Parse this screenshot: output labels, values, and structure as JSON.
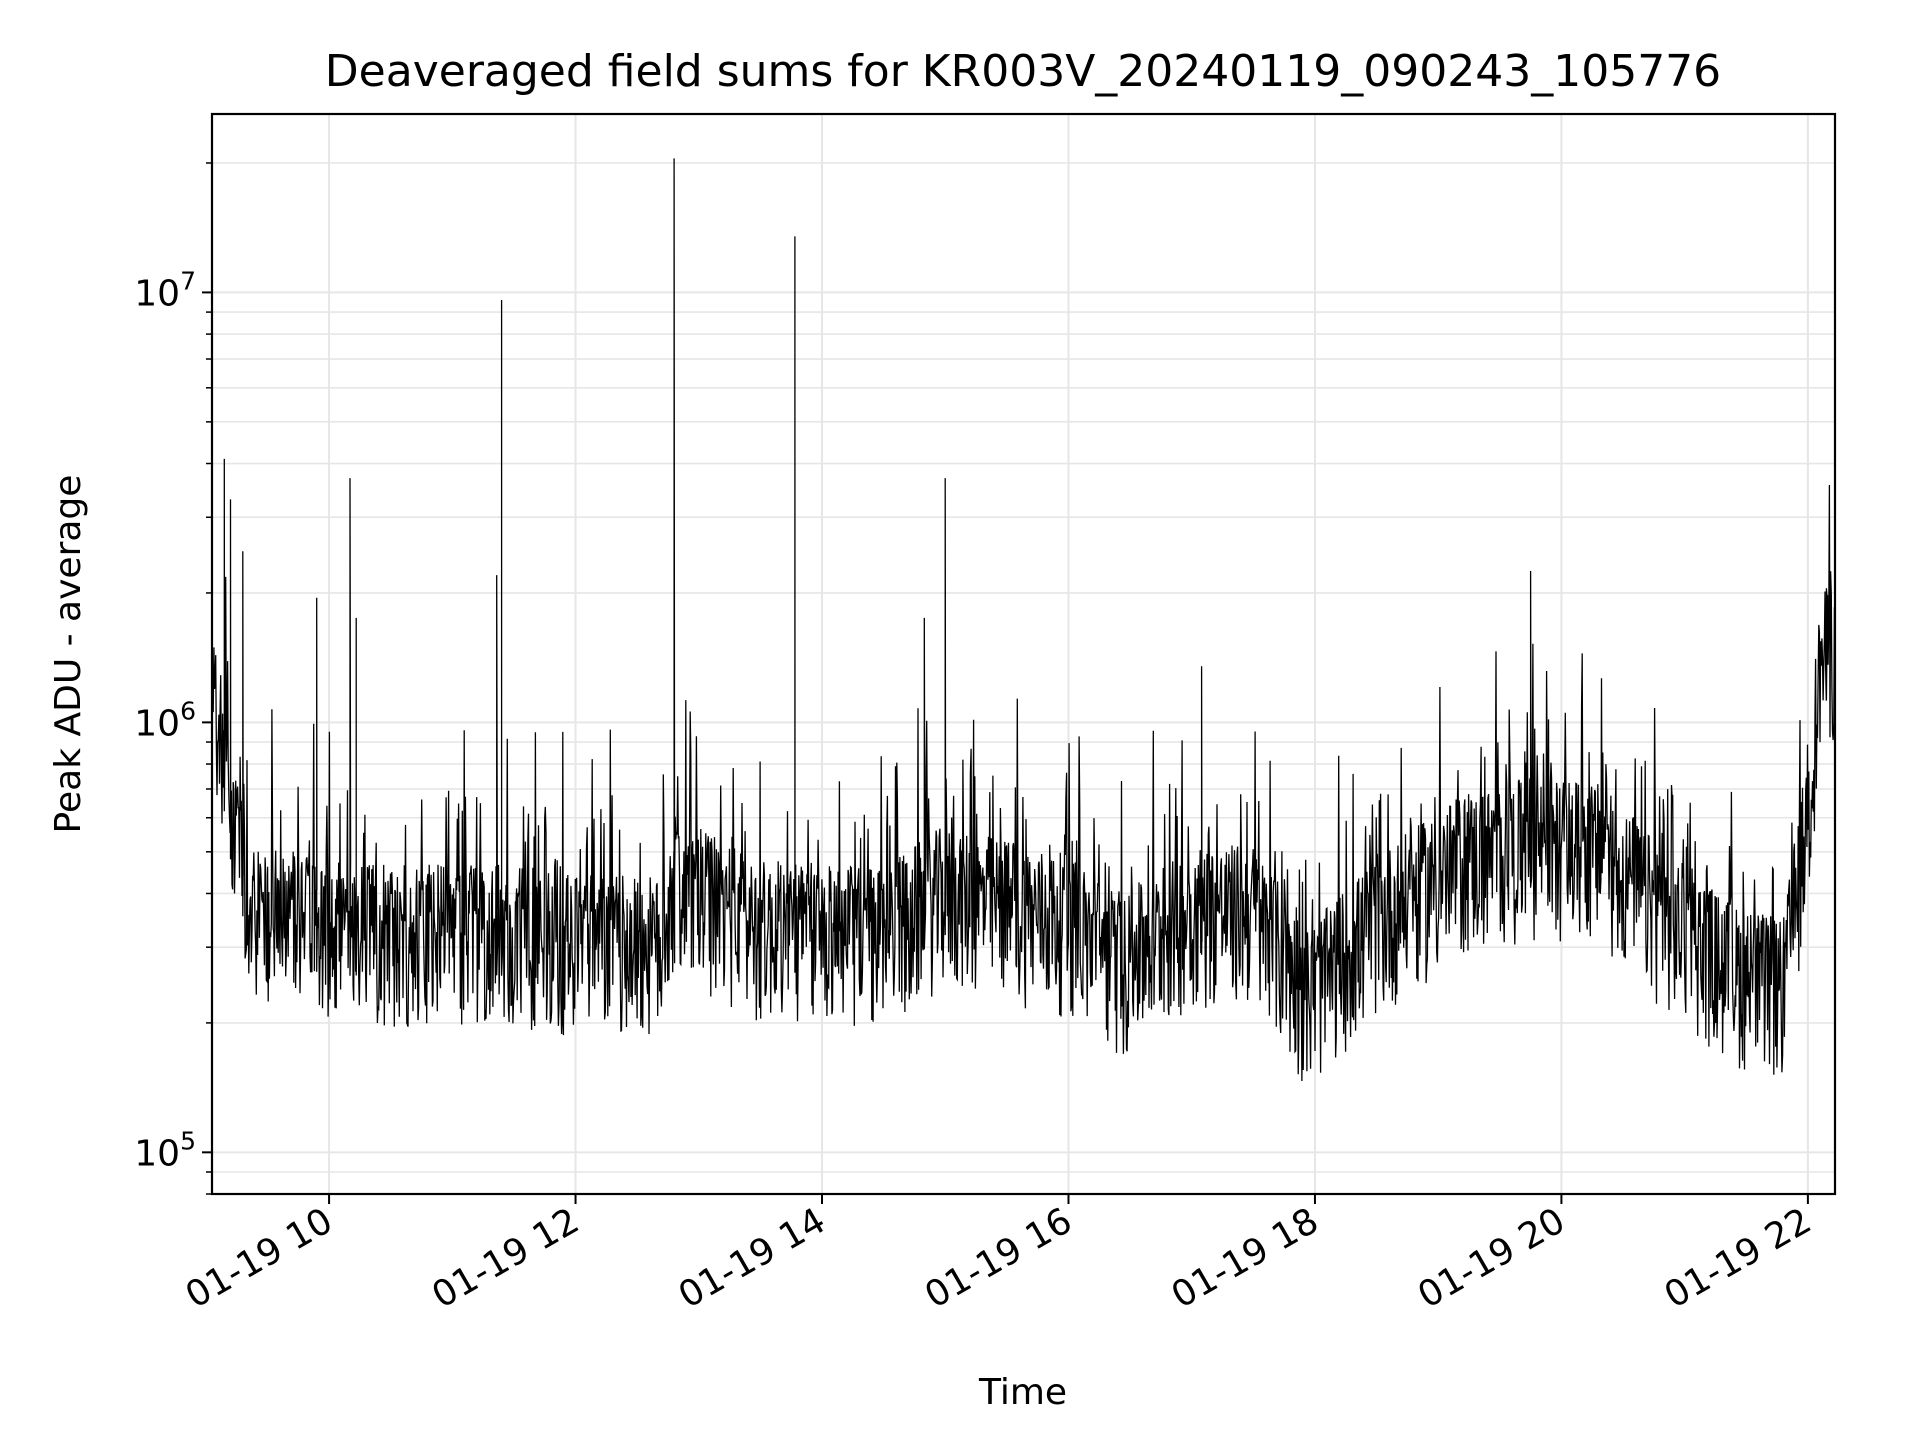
{
  "chart_data": {
    "type": "line",
    "title": "Deaveraged field sums for KR003V_20240119_090243_105776",
    "xlabel": "Time",
    "ylabel": "Peak ADU - average",
    "x_ticks": [
      "01-19 10",
      "01-19 12",
      "01-19 14",
      "01-19 16",
      "01-19 18",
      "01-19 20",
      "01-19 22"
    ],
    "x_tick_hours": [
      10,
      12,
      14,
      16,
      18,
      20,
      22
    ],
    "xlim_hours": [
      9.05,
      22.22
    ],
    "y_ticks": [
      {
        "base": "10",
        "exp": "5",
        "value": 100000
      },
      {
        "base": "10",
        "exp": "6",
        "value": 1000000
      },
      {
        "base": "10",
        "exp": "7",
        "value": 10000000
      }
    ],
    "y_scale": "log",
    "ylim": [
      80000,
      26000000
    ],
    "grid": true,
    "line_color": "#000000",
    "baseline_profile": [
      {
        "x": 9.05,
        "y": 1300000
      },
      {
        "x": 9.2,
        "y": 600000
      },
      {
        "x": 9.35,
        "y": 380000
      },
      {
        "x": 10.0,
        "y": 320000
      },
      {
        "x": 11.0,
        "y": 330000
      },
      {
        "x": 12.0,
        "y": 310000
      },
      {
        "x": 12.7,
        "y": 300000
      },
      {
        "x": 12.8,
        "y": 420000
      },
      {
        "x": 13.5,
        "y": 330000
      },
      {
        "x": 14.5,
        "y": 320000
      },
      {
        "x": 15.0,
        "y": 400000
      },
      {
        "x": 16.0,
        "y": 340000
      },
      {
        "x": 16.45,
        "y": 270000
      },
      {
        "x": 17.0,
        "y": 360000
      },
      {
        "x": 17.5,
        "y": 360000
      },
      {
        "x": 17.95,
        "y": 230000
      },
      {
        "x": 18.5,
        "y": 340000
      },
      {
        "x": 19.2,
        "y": 470000
      },
      {
        "x": 19.8,
        "y": 520000
      },
      {
        "x": 20.3,
        "y": 500000
      },
      {
        "x": 20.8,
        "y": 360000
      },
      {
        "x": 21.4,
        "y": 260000
      },
      {
        "x": 21.8,
        "y": 240000
      },
      {
        "x": 22.0,
        "y": 600000
      },
      {
        "x": 22.1,
        "y": 1350000
      },
      {
        "x": 22.22,
        "y": 1500000
      }
    ],
    "spikes": [
      {
        "x": 9.15,
        "y": 4100000
      },
      {
        "x": 9.2,
        "y": 3300000
      },
      {
        "x": 9.3,
        "y": 2500000
      },
      {
        "x": 9.9,
        "y": 1950000
      },
      {
        "x": 10.17,
        "y": 3700000
      },
      {
        "x": 10.22,
        "y": 1750000
      },
      {
        "x": 11.36,
        "y": 2200000
      },
      {
        "x": 11.4,
        "y": 9600000
      },
      {
        "x": 12.8,
        "y": 20500000
      },
      {
        "x": 13.78,
        "y": 13500000
      },
      {
        "x": 14.83,
        "y": 1750000
      },
      {
        "x": 15.0,
        "y": 3700000
      },
      {
        "x": 17.08,
        "y": 1350000
      },
      {
        "x": 19.75,
        "y": 2250000
      },
      {
        "x": 22.15,
        "y": 2050000
      }
    ]
  }
}
